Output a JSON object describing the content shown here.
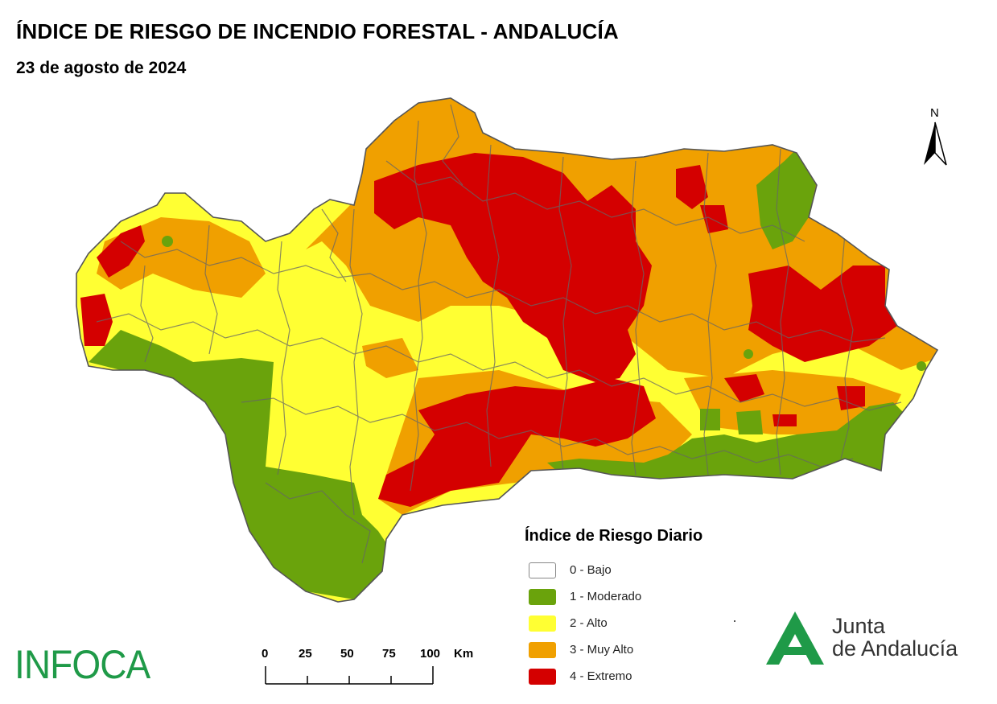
{
  "title": "ÍNDICE DE RIESGO DE INCENDIO FORESTAL - ANDALUCÍA",
  "date": "23 de agosto de 2024",
  "north_label": "N",
  "legend": {
    "title": "Índice de Riesgo Diario",
    "items": [
      {
        "label": "0 - Bajo",
        "color": "#ffffff"
      },
      {
        "label": "1 - Moderado",
        "color": "#6aa30c"
      },
      {
        "label": "2 - Alto",
        "color": "#ffff33"
      },
      {
        "label": "3 - Muy Alto",
        "color": "#f0a000"
      },
      {
        "label": "4 - Extremo",
        "color": "#d40000"
      }
    ]
  },
  "scale_bar": {
    "labels": [
      "0",
      "25",
      "50",
      "75",
      "100"
    ],
    "unit": "Km"
  },
  "logos": {
    "infoca": "INFOCA",
    "junta_line1": "Junta",
    "junta_line2": "de Andalucía"
  },
  "colors": {
    "bajo": "#ffffff",
    "moderado": "#6aa30c",
    "alto": "#ffff33",
    "muy_alto": "#f0a000",
    "extremo": "#d40000",
    "borders": "#666666",
    "brand_green": "#1f9a48"
  }
}
